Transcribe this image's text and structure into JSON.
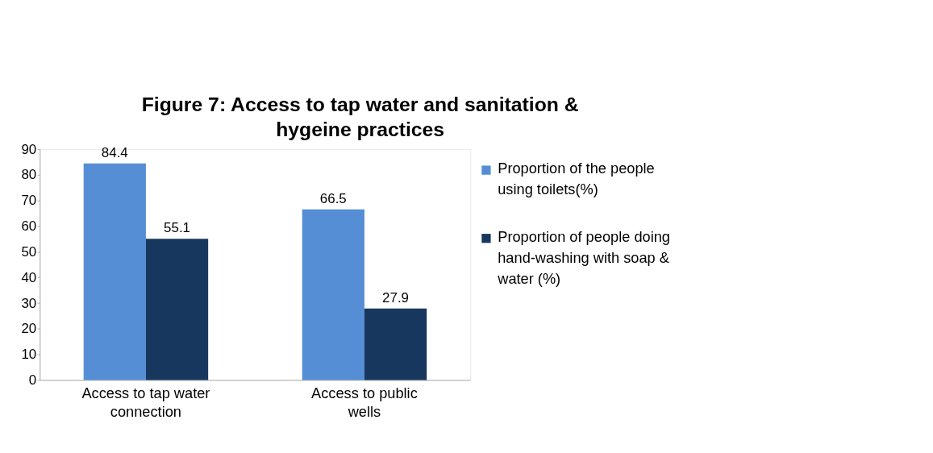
{
  "chart_data": {
    "type": "bar",
    "title": "Figure 7: Access to tap water and sanitation & hygeine practices",
    "categories": [
      "Access to tap water connection",
      "Access to public wells"
    ],
    "series": [
      {
        "name": "Proportion of the people using toilets(%)",
        "color": "#558ed5",
        "values": [
          84.4,
          66.5
        ]
      },
      {
        "name": "Proportion of people doing hand-washing with soap & water (%)",
        "color": "#17375e",
        "values": [
          55.1,
          27.9
        ]
      }
    ],
    "ylim": [
      0,
      90
    ],
    "yticks": [
      0,
      10,
      20,
      30,
      40,
      50,
      60,
      70,
      80,
      90
    ],
    "data_labels": true,
    "legend": "right",
    "grid": false
  }
}
